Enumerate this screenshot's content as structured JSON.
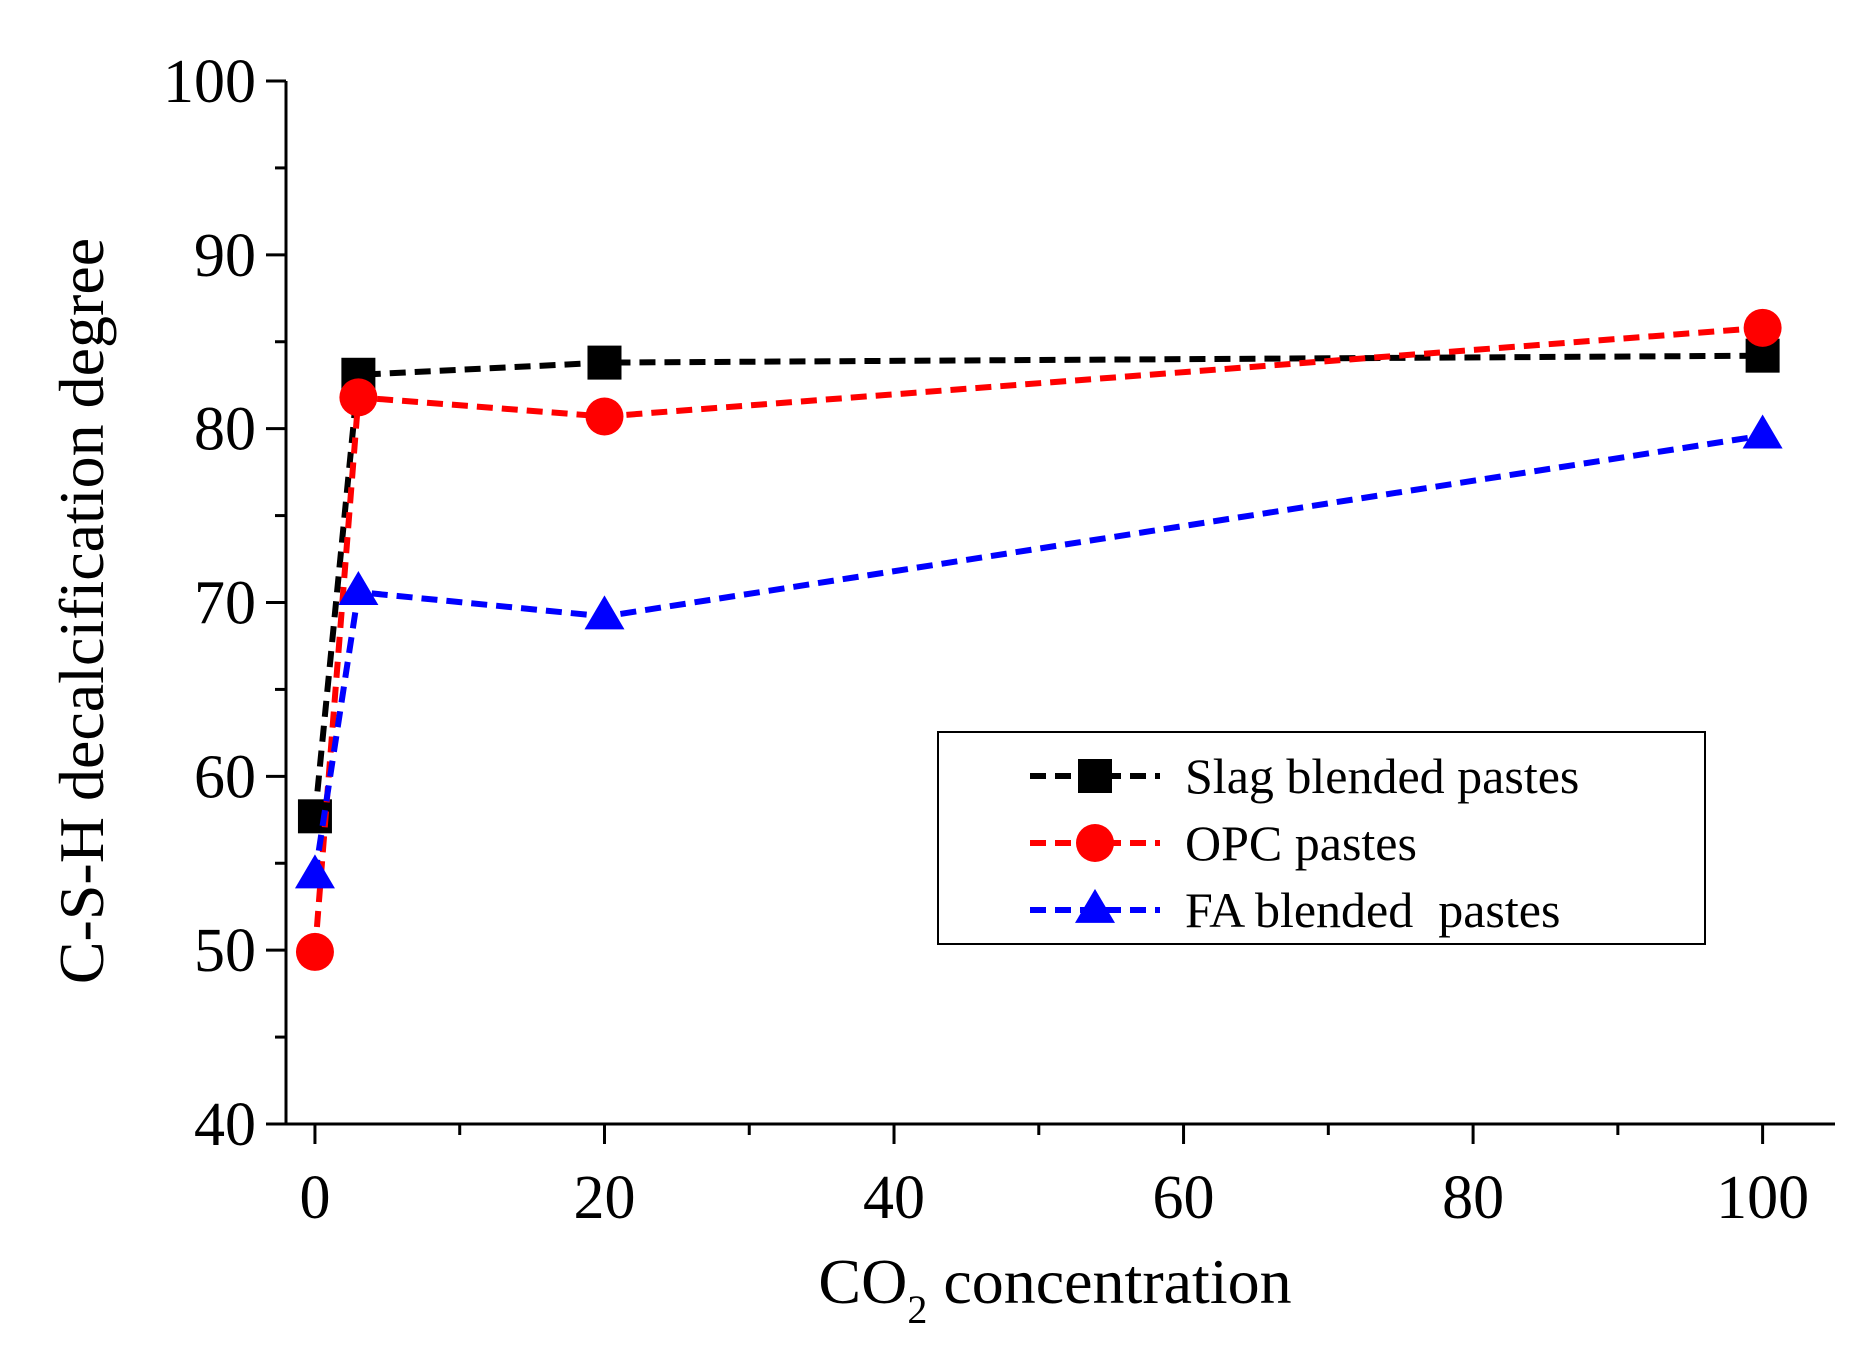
{
  "chart_data": {
    "type": "line",
    "title": "",
    "xlabel_main": "CO",
    "xlabel_sub": "2",
    "xlabel_rest": " concentration",
    "ylabel": "C-S-H decalcification degree",
    "xlim": [
      -2,
      105
    ],
    "ylim": [
      40,
      100
    ],
    "x_ticks": [
      0,
      20,
      40,
      60,
      80,
      100
    ],
    "x_tick_labels": [
      "0",
      "20",
      "40",
      "60",
      "80",
      "100"
    ],
    "x_minor_ticks": [
      10,
      30,
      50,
      70,
      90
    ],
    "y_ticks": [
      40,
      50,
      60,
      70,
      80,
      90,
      100
    ],
    "y_tick_labels": [
      "40",
      "50",
      "60",
      "70",
      "80",
      "90",
      "100"
    ],
    "y_minor_ticks": [
      45,
      55,
      65,
      75,
      85,
      95
    ],
    "grid": false,
    "legend_position": "lower-right",
    "series": [
      {
        "name": "Slag blended pastes",
        "color": "#000000",
        "marker": "square",
        "x": [
          0,
          3,
          20,
          100
        ],
        "y": [
          57.7,
          83.1,
          83.8,
          84.2
        ]
      },
      {
        "name": "OPC pastes",
        "color": "#ff0000",
        "marker": "circle",
        "x": [
          0,
          3,
          20,
          100
        ],
        "y": [
          49.9,
          81.8,
          80.7,
          85.8
        ]
      },
      {
        "name": "FA blended  pastes",
        "color": "#0000ff",
        "marker": "triangle",
        "x": [
          0,
          3,
          20,
          100
        ],
        "y": [
          54.3,
          70.6,
          69.2,
          79.6
        ]
      }
    ]
  }
}
